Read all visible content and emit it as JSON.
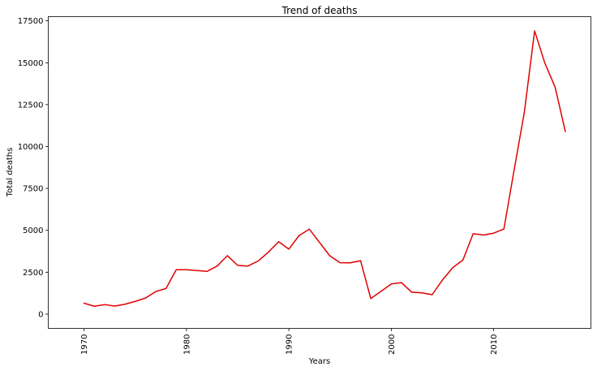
{
  "chart_data": {
    "type": "line",
    "title": "Trend of deaths",
    "xlabel": "Years",
    "ylabel": "Total deaths",
    "xlim": [
      1966.5,
      2019.5
    ],
    "ylim": [
      -850,
      17750
    ],
    "xticks": [
      1970,
      1980,
      1990,
      2000,
      2010
    ],
    "yticks": [
      0,
      2500,
      5000,
      7500,
      10000,
      12500,
      15000,
      17500
    ],
    "grid": false,
    "legend": "none",
    "series": [
      {
        "color": "#e00000",
        "x": [
          1970,
          1971,
          1972,
          1973,
          1974,
          1975,
          1976,
          1977,
          1978,
          1979,
          1980,
          1981,
          1982,
          1983,
          1984,
          1985,
          1986,
          1987,
          1988,
          1989,
          1990,
          1991,
          1992,
          1994,
          1995,
          1996,
          1997,
          1998,
          1999,
          2000,
          2001,
          2002,
          2003,
          2004,
          2005,
          2006,
          2007,
          2008,
          2009,
          2010,
          2011,
          2012,
          2013,
          2014,
          2015,
          2016,
          2017
        ],
        "y": [
          650,
          470,
          570,
          480,
          590,
          760,
          960,
          1350,
          1530,
          2650,
          2650,
          2600,
          2550,
          2870,
          3490,
          2910,
          2870,
          3170,
          3700,
          4320,
          3880,
          4690,
          5070,
          3480,
          3070,
          3060,
          3190,
          930,
          1360,
          1800,
          1880,
          1310,
          1270,
          1160,
          2040,
          2770,
          3230,
          4800,
          4720,
          4830,
          5080,
          8600,
          12050,
          16900,
          14980,
          13550,
          10900
        ]
      }
    ]
  }
}
